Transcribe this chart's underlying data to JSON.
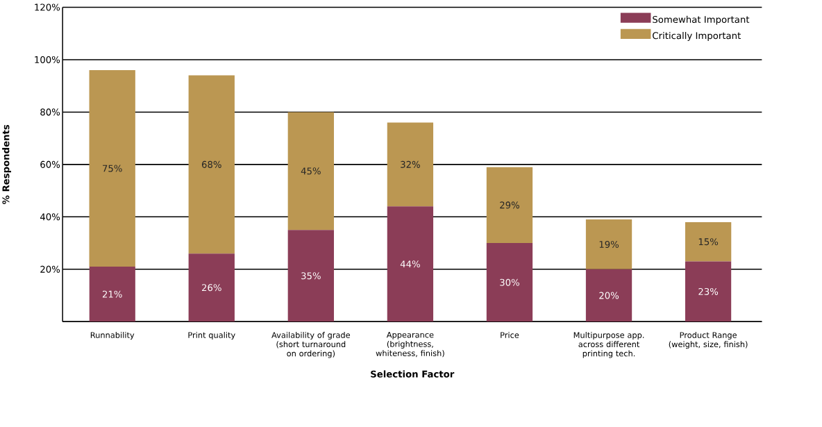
{
  "chart_data": {
    "type": "bar",
    "stacked": true,
    "xlabel": "Selection Factor",
    "ylabel": "% Respondents",
    "categories": [
      "Runnability",
      "Print quality",
      "Availability of grade (short turnaround on ordering)",
      "Appearance (brightness, whiteness, finish)",
      "Price",
      "Multipurpose app. across different printing tech.",
      "Product Range (weight, size, finish)"
    ],
    "series": [
      {
        "name": "Somewhat Important",
        "color": "#8b3d57",
        "values": [
          21,
          26,
          35,
          44,
          30,
          20,
          23
        ],
        "value_labels": [
          "21%",
          "26%",
          "35%",
          "44%",
          "30%",
          "20%",
          "23%"
        ]
      },
      {
        "name": "Critically Important",
        "color": "#bb9752",
        "values": [
          75,
          68,
          45,
          32,
          29,
          19,
          15
        ],
        "value_labels": [
          "75%",
          "68%",
          "45%",
          "32%",
          "29%",
          "19%",
          "15%"
        ]
      }
    ],
    "ylim": [
      0,
      120
    ],
    "yticks": [
      {
        "value": 0,
        "label": null
      },
      {
        "value": 20,
        "label": "20%"
      },
      {
        "value": 40,
        "label": "40%"
      },
      {
        "value": 60,
        "label": "60%"
      },
      {
        "value": 80,
        "label": "80%"
      },
      {
        "value": 100,
        "label": "100%"
      },
      {
        "value": 120,
        "label": "120%"
      }
    ],
    "grid": "y",
    "legend": "top right"
  }
}
